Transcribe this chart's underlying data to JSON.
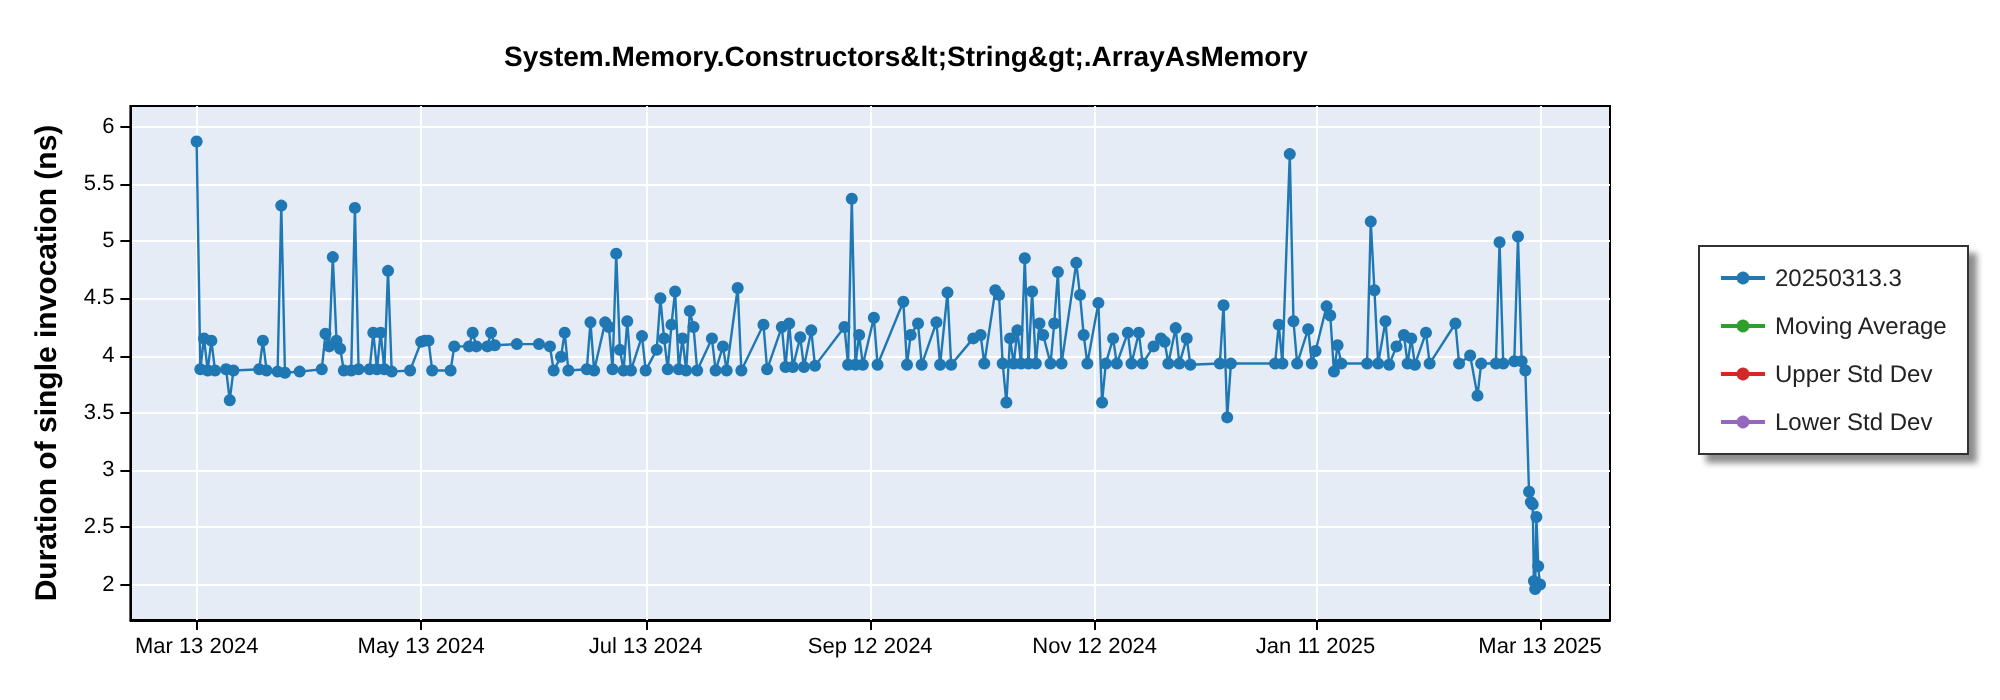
{
  "chart_data": {
    "type": "line",
    "title": "System.Memory.Constructors&lt;String&gt;.ArrayAsMemory",
    "ylabel": "Duration of single invocation (ns)",
    "xlim": [
      "2024-02-24",
      "2025-04-01"
    ],
    "xticks": [
      {
        "value": "2024-03-13",
        "label": "Mar 13 2024"
      },
      {
        "value": "2024-05-13",
        "label": "May 13 2024"
      },
      {
        "value": "2024-07-13",
        "label": "Jul 13 2024"
      },
      {
        "value": "2024-09-12",
        "label": "Sep 12 2024"
      },
      {
        "value": "2024-11-12",
        "label": "Nov 12 2024"
      },
      {
        "value": "2025-01-11",
        "label": "Jan 11 2025"
      },
      {
        "value": "2025-03-13",
        "label": "Mar 13 2025"
      }
    ],
    "ylim": [
      1.69,
      6.18
    ],
    "yticks": [
      2,
      2.5,
      3,
      3.5,
      4,
      4.5,
      5,
      5.5,
      6
    ],
    "grid": true,
    "legend": "right",
    "marker": "circle",
    "line_style": "solid",
    "series": [
      {
        "name": "20250313.3",
        "color": "#1f77b4",
        "x": [
          "2024-03-13",
          "2024-03-14",
          "2024-03-15",
          "2024-03-16",
          "2024-03-17",
          "2024-03-18",
          "2024-03-21",
          "2024-03-22",
          "2024-03-23",
          "2024-03-30",
          "2024-03-31",
          "2024-04-01",
          "2024-04-04",
          "2024-04-05",
          "2024-04-06",
          "2024-04-10",
          "2024-04-16",
          "2024-04-17",
          "2024-04-18",
          "2024-04-19",
          "2024-04-20",
          "2024-04-21",
          "2024-04-22",
          "2024-04-24",
          "2024-04-25",
          "2024-04-26",
          "2024-04-29",
          "2024-04-30",
          "2024-05-01",
          "2024-05-02",
          "2024-05-03",
          "2024-05-04",
          "2024-05-05",
          "2024-05-10",
          "2024-05-13",
          "2024-05-14",
          "2024-05-15",
          "2024-05-16",
          "2024-05-21",
          "2024-05-22",
          "2024-05-26",
          "2024-05-27",
          "2024-05-28",
          "2024-05-31",
          "2024-06-01",
          "2024-06-02",
          "2024-06-08",
          "2024-06-14",
          "2024-06-17",
          "2024-06-18",
          "2024-06-20",
          "2024-06-21",
          "2024-06-22",
          "2024-06-27",
          "2024-06-28",
          "2024-06-29",
          "2024-07-02",
          "2024-07-03",
          "2024-07-04",
          "2024-07-05",
          "2024-07-06",
          "2024-07-07",
          "2024-07-08",
          "2024-07-09",
          "2024-07-12",
          "2024-07-13",
          "2024-07-16",
          "2024-07-17",
          "2024-07-18",
          "2024-07-19",
          "2024-07-20",
          "2024-07-21",
          "2024-07-22",
          "2024-07-23",
          "2024-07-24",
          "2024-07-25",
          "2024-07-26",
          "2024-07-27",
          "2024-07-31",
          "2024-08-01",
          "2024-08-03",
          "2024-08-04",
          "2024-08-07",
          "2024-08-08",
          "2024-08-14",
          "2024-08-15",
          "2024-08-19",
          "2024-08-20",
          "2024-08-21",
          "2024-08-22",
          "2024-08-24",
          "2024-08-25",
          "2024-08-27",
          "2024-08-28",
          "2024-09-05",
          "2024-09-06",
          "2024-09-07",
          "2024-09-08",
          "2024-09-09",
          "2024-09-10",
          "2024-09-13",
          "2024-09-14",
          "2024-09-21",
          "2024-09-22",
          "2024-09-23",
          "2024-09-25",
          "2024-09-26",
          "2024-09-30",
          "2024-10-01",
          "2024-10-03",
          "2024-10-04",
          "2024-10-10",
          "2024-10-12",
          "2024-10-13",
          "2024-10-16",
          "2024-10-17",
          "2024-10-18",
          "2024-10-19",
          "2024-10-20",
          "2024-10-21",
          "2024-10-22",
          "2024-10-23",
          "2024-10-24",
          "2024-10-25",
          "2024-10-26",
          "2024-10-27",
          "2024-10-28",
          "2024-10-29",
          "2024-10-31",
          "2024-11-01",
          "2024-11-02",
          "2024-11-03",
          "2024-11-07",
          "2024-11-08",
          "2024-11-09",
          "2024-11-10",
          "2024-11-13",
          "2024-11-14",
          "2024-11-15",
          "2024-11-17",
          "2024-11-18",
          "2024-11-21",
          "2024-11-22",
          "2024-11-24",
          "2024-11-25",
          "2024-11-28",
          "2024-11-30",
          "2024-12-01",
          "2024-12-02",
          "2024-12-04",
          "2024-12-05",
          "2024-12-07",
          "2024-12-08",
          "2024-12-16",
          "2024-12-17",
          "2024-12-18",
          "2024-12-19",
          "2024-12-31",
          "2025-01-01",
          "2025-01-02",
          "2025-01-04",
          "2025-01-05",
          "2025-01-06",
          "2025-01-09",
          "2025-01-10",
          "2025-01-11",
          "2025-01-14",
          "2025-01-15",
          "2025-01-16",
          "2025-01-17",
          "2025-01-18",
          "2025-01-25",
          "2025-01-26",
          "2025-01-27",
          "2025-01-28",
          "2025-01-30",
          "2025-01-31",
          "2025-02-02",
          "2025-02-04",
          "2025-02-05",
          "2025-02-06",
          "2025-02-07",
          "2025-02-10",
          "2025-02-11",
          "2025-02-18",
          "2025-02-19",
          "2025-02-22",
          "2025-02-24",
          "2025-02-25",
          "2025-03-01",
          "2025-03-02",
          "2025-03-03",
          "2025-03-06",
          "2025-03-07",
          "2025-03-08",
          "2025-03-09",
          "2025-03-10",
          "2025-03-10T12:00",
          "2025-03-11",
          "2025-03-11T08:00",
          "2025-03-11T16:00",
          "2025-03-12",
          "2025-03-12T12:00",
          "2025-03-13"
        ],
        "values": [
          5.87,
          3.88,
          4.15,
          3.87,
          4.13,
          3.87,
          3.88,
          3.61,
          3.87,
          3.88,
          4.13,
          3.87,
          3.86,
          5.31,
          3.85,
          3.86,
          3.88,
          4.19,
          4.08,
          4.86,
          4.13,
          4.06,
          3.87,
          3.87,
          5.29,
          3.88,
          3.88,
          4.2,
          3.88,
          4.2,
          3.88,
          4.74,
          3.86,
          3.87,
          4.12,
          4.13,
          4.13,
          3.87,
          3.87,
          4.08,
          4.08,
          4.2,
          4.08,
          4.08,
          4.2,
          4.09,
          4.1,
          4.1,
          4.08,
          3.87,
          3.99,
          4.2,
          3.87,
          3.88,
          4.29,
          3.87,
          4.29,
          4.25,
          3.88,
          4.89,
          4.05,
          3.87,
          4.3,
          3.87,
          4.17,
          3.87,
          4.05,
          4.5,
          4.15,
          3.88,
          4.27,
          4.56,
          3.88,
          4.15,
          3.87,
          4.39,
          4.25,
          3.87,
          4.15,
          3.87,
          4.08,
          3.87,
          4.59,
          3.87,
          4.27,
          3.88,
          4.25,
          3.9,
          4.28,
          3.9,
          4.16,
          3.9,
          4.22,
          3.91,
          4.25,
          3.92,
          5.37,
          3.92,
          4.18,
          3.92,
          4.33,
          3.92,
          4.47,
          3.92,
          4.18,
          4.28,
          3.92,
          4.29,
          3.92,
          4.55,
          3.92,
          4.15,
          4.18,
          3.93,
          4.57,
          4.53,
          3.93,
          3.59,
          4.15,
          3.93,
          4.22,
          3.93,
          4.85,
          3.93,
          4.56,
          3.93,
          4.28,
          4.18,
          3.93,
          4.28,
          4.73,
          3.93,
          4.81,
          4.53,
          4.18,
          3.93,
          4.46,
          3.59,
          3.93,
          4.15,
          3.93,
          4.2,
          3.93,
          4.2,
          3.93,
          4.08,
          4.15,
          4.12,
          3.93,
          4.24,
          3.93,
          4.15,
          3.92,
          3.93,
          4.44,
          3.46,
          3.93,
          3.93,
          4.27,
          3.93,
          5.76,
          4.3,
          3.93,
          4.23,
          3.93,
          4.04,
          4.43,
          4.35,
          3.86,
          4.09,
          3.93,
          3.93,
          5.17,
          4.57,
          3.93,
          4.3,
          3.92,
          4.08,
          4.18,
          3.93,
          4.15,
          3.92,
          4.2,
          3.93,
          4.28,
          3.93,
          4.0,
          3.65,
          3.93,
          3.93,
          4.99,
          3.93,
          3.95,
          5.04,
          3.95,
          3.87,
          2.81,
          2.72,
          2.7,
          2.03,
          1.96,
          2.59,
          2.16,
          2.0
        ]
      },
      {
        "name": "Moving Average",
        "color": "#2ca02c"
      },
      {
        "name": "Upper Std Dev",
        "color": "#d62728"
      },
      {
        "name": "Lower Std Dev",
        "color": "#9467bd"
      }
    ]
  }
}
